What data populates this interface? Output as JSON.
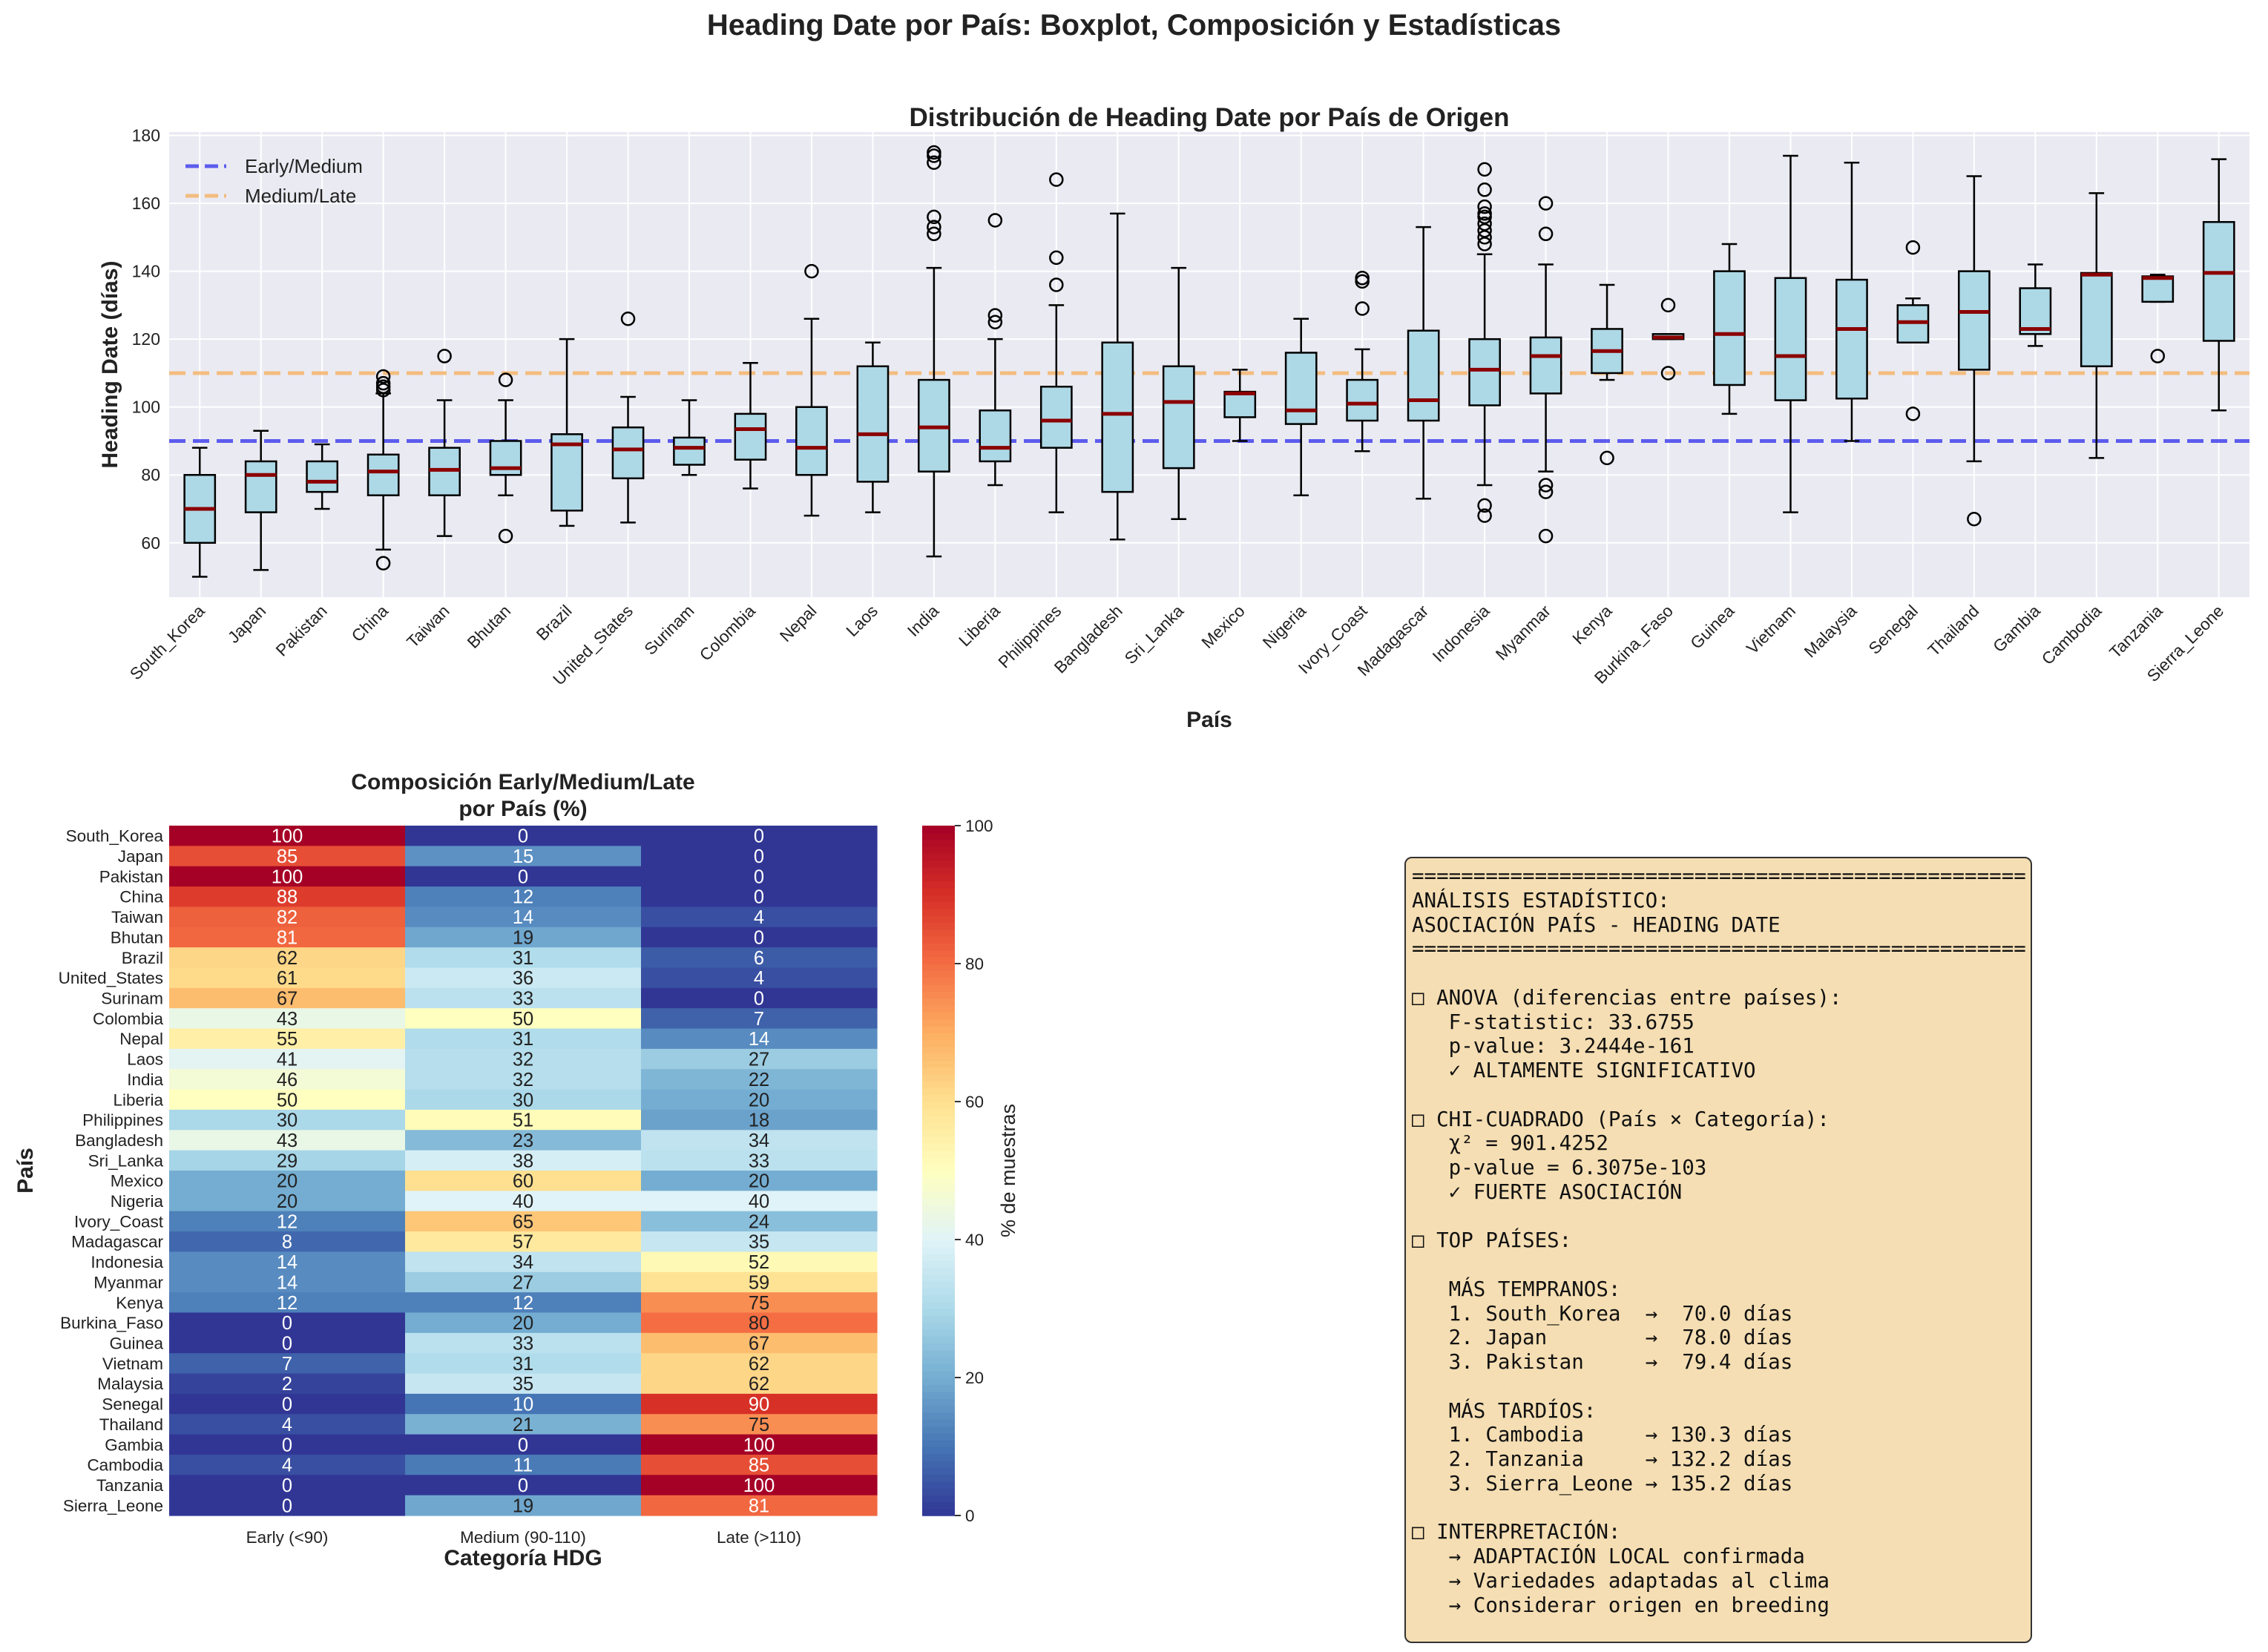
{
  "suptitle": "Heading Date por País: Boxplot, Composición y Estadísticas",
  "colors": {
    "axes_bg": "#eaeaf2",
    "box_fill": "#add8e6",
    "median": "#8b0000",
    "early_medium_line": "#4444ee",
    "medium_late_line": "#f5b56b",
    "stats_bg": "#f5deb3"
  },
  "chart_data": [
    {
      "type": "boxplot",
      "title": "Distribución de Heading Date por País de Origen",
      "xlabel": "País",
      "ylabel": "Heading Date (días)",
      "ylim": [
        44,
        181
      ],
      "yticks": [
        60,
        80,
        100,
        120,
        140,
        160,
        180
      ],
      "grid": true,
      "legend_position": "top-left",
      "reference_lines": [
        {
          "name": "Early/Medium",
          "y": 90,
          "style": "dashed",
          "color": "#4444ee"
        },
        {
          "name": "Medium/Late",
          "y": 110,
          "style": "dashed",
          "color": "#f5b56b"
        }
      ],
      "categories": [
        "South_Korea",
        "Japan",
        "Pakistan",
        "China",
        "Taiwan",
        "Bhutan",
        "Brazil",
        "United_States",
        "Surinam",
        "Colombia",
        "Nepal",
        "Laos",
        "India",
        "Liberia",
        "Philippines",
        "Bangladesh",
        "Sri_Lanka",
        "Mexico",
        "Nigeria",
        "Ivory_Coast",
        "Madagascar",
        "Indonesia",
        "Myanmar",
        "Kenya",
        "Burkina_Faso",
        "Guinea",
        "Vietnam",
        "Malaysia",
        "Senegal",
        "Thailand",
        "Gambia",
        "Cambodia",
        "Tanzania",
        "Sierra_Leone"
      ],
      "boxes": [
        {
          "whislo": 50,
          "q1": 60,
          "med": 70,
          "q3": 80,
          "whishi": 88,
          "fliers": []
        },
        {
          "whislo": 52,
          "q1": 69,
          "med": 80,
          "q3": 84,
          "whishi": 93,
          "fliers": []
        },
        {
          "whislo": 70,
          "q1": 75,
          "med": 78,
          "q3": 84,
          "whishi": 89,
          "fliers": []
        },
        {
          "whislo": 58,
          "q1": 74,
          "med": 81,
          "q3": 86,
          "whishi": 104,
          "fliers": [
            54,
            105,
            106,
            107,
            109
          ]
        },
        {
          "whislo": 62,
          "q1": 74,
          "med": 81.5,
          "q3": 88,
          "whishi": 102,
          "fliers": [
            115
          ]
        },
        {
          "whislo": 74,
          "q1": 80,
          "med": 82,
          "q3": 90,
          "whishi": 102,
          "fliers": [
            62,
            108
          ]
        },
        {
          "whislo": 65,
          "q1": 69.5,
          "med": 89,
          "q3": 92,
          "whishi": 120,
          "fliers": []
        },
        {
          "whislo": 66,
          "q1": 79,
          "med": 87.5,
          "q3": 94,
          "whishi": 103,
          "fliers": [
            126
          ]
        },
        {
          "whislo": 80,
          "q1": 83,
          "med": 88,
          "q3": 91,
          "whishi": 102,
          "fliers": []
        },
        {
          "whislo": 76,
          "q1": 84.5,
          "med": 93.5,
          "q3": 98,
          "whishi": 113,
          "fliers": []
        },
        {
          "whislo": 68,
          "q1": 80,
          "med": 88,
          "q3": 100,
          "whishi": 126,
          "fliers": [
            140
          ]
        },
        {
          "whislo": 69,
          "q1": 78,
          "med": 92,
          "q3": 112,
          "whishi": 119,
          "fliers": []
        },
        {
          "whislo": 56,
          "q1": 81,
          "med": 94,
          "q3": 108,
          "whishi": 141,
          "fliers": [
            151,
            153,
            156,
            172,
            174,
            175
          ]
        },
        {
          "whislo": 77,
          "q1": 84,
          "med": 88,
          "q3": 99,
          "whishi": 120,
          "fliers": [
            125,
            127,
            155
          ]
        },
        {
          "whislo": 69,
          "q1": 88,
          "med": 96,
          "q3": 106,
          "whishi": 130,
          "fliers": [
            136,
            144,
            167
          ]
        },
        {
          "whislo": 61,
          "q1": 75,
          "med": 98,
          "q3": 119,
          "whishi": 157,
          "fliers": []
        },
        {
          "whislo": 67,
          "q1": 82,
          "med": 101.5,
          "q3": 112,
          "whishi": 141,
          "fliers": []
        },
        {
          "whislo": 90,
          "q1": 97,
          "med": 104,
          "q3": 104.5,
          "whishi": 111,
          "fliers": []
        },
        {
          "whislo": 74,
          "q1": 95,
          "med": 99,
          "q3": 116,
          "whishi": 126,
          "fliers": []
        },
        {
          "whislo": 87,
          "q1": 96,
          "med": 101,
          "q3": 108,
          "whishi": 117,
          "fliers": [
            129,
            137,
            138
          ]
        },
        {
          "whislo": 73,
          "q1": 96,
          "med": 102,
          "q3": 122.5,
          "whishi": 153,
          "fliers": []
        },
        {
          "whislo": 77,
          "q1": 100.5,
          "med": 111,
          "q3": 120,
          "whishi": 145,
          "fliers": [
            68,
            71,
            148,
            150,
            152,
            154,
            156,
            157,
            159,
            164,
            170
          ]
        },
        {
          "whislo": 81,
          "q1": 104,
          "med": 115,
          "q3": 120.5,
          "whishi": 142,
          "fliers": [
            62,
            75,
            77,
            151,
            160
          ]
        },
        {
          "whislo": 108,
          "q1": 110,
          "med": 116.5,
          "q3": 123,
          "whishi": 136,
          "fliers": [
            85
          ]
        },
        {
          "whislo": 120,
          "q1": 120,
          "med": 120.5,
          "q3": 121.5,
          "whishi": 121.5,
          "fliers": [
            110,
            130
          ]
        },
        {
          "whislo": 98,
          "q1": 106.5,
          "med": 121.5,
          "q3": 140,
          "whishi": 148,
          "fliers": []
        },
        {
          "whislo": 69,
          "q1": 102,
          "med": 115,
          "q3": 138,
          "whishi": 174,
          "fliers": []
        },
        {
          "whislo": 90,
          "q1": 102.5,
          "med": 123,
          "q3": 137.5,
          "whishi": 172,
          "fliers": []
        },
        {
          "whislo": 119,
          "q1": 119,
          "med": 125,
          "q3": 130,
          "whishi": 132,
          "fliers": [
            98,
            147
          ]
        },
        {
          "whislo": 84,
          "q1": 111,
          "med": 128,
          "q3": 140,
          "whishi": 168,
          "fliers": [
            67
          ]
        },
        {
          "whislo": 118,
          "q1": 121.5,
          "med": 123,
          "q3": 135,
          "whishi": 142,
          "fliers": []
        },
        {
          "whislo": 85,
          "q1": 112,
          "med": 139,
          "q3": 139.5,
          "whishi": 163,
          "fliers": []
        },
        {
          "whislo": 131,
          "q1": 131,
          "med": 138,
          "q3": 138.5,
          "whishi": 139,
          "fliers": [
            115
          ]
        },
        {
          "whislo": 99,
          "q1": 119.5,
          "med": 139.5,
          "q3": 154.5,
          "whishi": 173,
          "fliers": []
        }
      ]
    },
    {
      "type": "heatmap",
      "title": "Composición Early/Medium/Late\npor País (%)",
      "xlabel": "Categoría HDG",
      "ylabel": "País",
      "columns": [
        "Early (<90)",
        "Medium (90-110)",
        "Late (>110)"
      ],
      "rows": [
        "South_Korea",
        "Japan",
        "Pakistan",
        "China",
        "Taiwan",
        "Bhutan",
        "Brazil",
        "United_States",
        "Surinam",
        "Colombia",
        "Nepal",
        "Laos",
        "India",
        "Liberia",
        "Philippines",
        "Bangladesh",
        "Sri_Lanka",
        "Mexico",
        "Nigeria",
        "Ivory_Coast",
        "Madagascar",
        "Indonesia",
        "Myanmar",
        "Kenya",
        "Burkina_Faso",
        "Guinea",
        "Vietnam",
        "Malaysia",
        "Senegal",
        "Thailand",
        "Gambia",
        "Cambodia",
        "Tanzania",
        "Sierra_Leone"
      ],
      "values": [
        [
          100,
          0,
          0
        ],
        [
          85,
          15,
          0
        ],
        [
          100,
          0,
          0
        ],
        [
          88,
          12,
          0
        ],
        [
          82,
          14,
          4
        ],
        [
          81,
          19,
          0
        ],
        [
          62,
          31,
          6
        ],
        [
          61,
          36,
          4
        ],
        [
          67,
          33,
          0
        ],
        [
          43,
          50,
          7
        ],
        [
          55,
          31,
          14
        ],
        [
          41,
          32,
          27
        ],
        [
          46,
          32,
          22
        ],
        [
          50,
          30,
          20
        ],
        [
          30,
          51,
          18
        ],
        [
          43,
          23,
          34
        ],
        [
          29,
          38,
          33
        ],
        [
          20,
          60,
          20
        ],
        [
          20,
          40,
          40
        ],
        [
          12,
          65,
          24
        ],
        [
          8,
          57,
          35
        ],
        [
          14,
          34,
          52
        ],
        [
          14,
          27,
          59
        ],
        [
          12,
          12,
          75
        ],
        [
          0,
          20,
          80
        ],
        [
          0,
          33,
          67
        ],
        [
          7,
          31,
          62
        ],
        [
          2,
          35,
          62
        ],
        [
          0,
          10,
          90
        ],
        [
          4,
          21,
          75
        ],
        [
          0,
          0,
          100
        ],
        [
          4,
          11,
          85
        ],
        [
          0,
          0,
          100
        ],
        [
          0,
          19,
          81
        ]
      ],
      "colormap": "RdYlBu_r",
      "colorbar": {
        "label": "% de muestras",
        "range": [
          0,
          100
        ],
        "ticks": [
          0,
          20,
          40,
          60,
          80,
          100
        ]
      }
    }
  ],
  "stats_text": "==================================================\nANÁLISIS ESTADÍSTICO:\nASOCIACIÓN PAÍS - HEADING DATE\n==================================================\n\n□ ANOVA (diferencias entre países):\n   F-statistic: 33.6755\n   p-value: 3.2444e-161\n   ✓ ALTAMENTE SIGNIFICATIVO\n\n□ CHI-CUADRADO (País × Categoría):\n   χ² = 901.4252\n   p-value = 6.3075e-103\n   ✓ FUERTE ASOCIACIÓN\n\n□ TOP PAÍSES:\n\n   MÁS TEMPRANOS:\n   1. South_Korea  →  70.0 días\n   2. Japan        →  78.0 días\n   3. Pakistan     →  79.4 días\n\n   MÁS TARDÍOS:\n   1. Cambodia     → 130.3 días\n   2. Tanzania     → 132.2 días\n   3. Sierra_Leone → 135.2 días\n\n□ INTERPRETACIÓN:\n   → ADAPTACIÓN LOCAL confirmada\n   → Variedades adaptadas al clima\n   → Considerar origen en breeding"
}
